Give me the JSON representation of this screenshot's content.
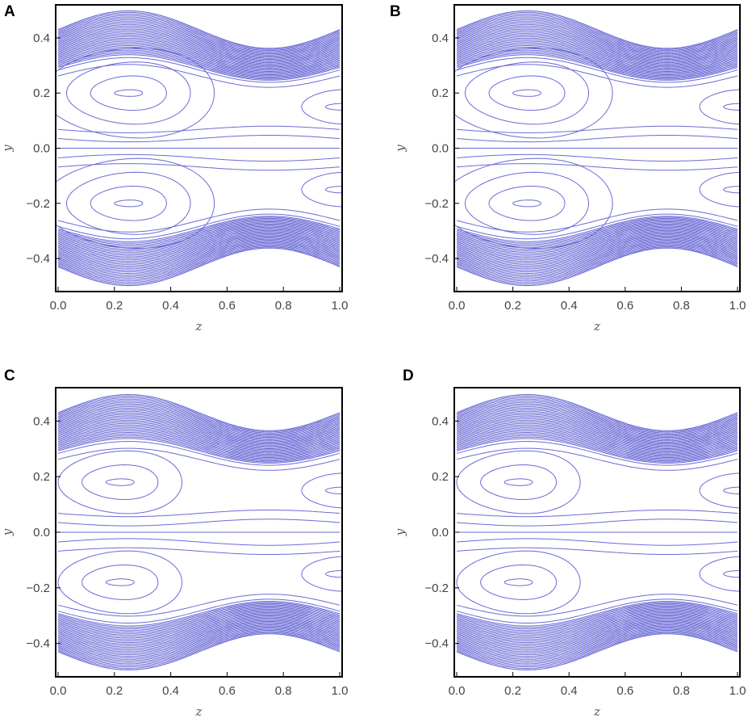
{
  "chart_data": [
    {
      "type": "contour",
      "panel_label": "A",
      "xlabel": "z",
      "ylabel": "y",
      "xlim": [
        0.0,
        1.0
      ],
      "ylim": [
        -0.52,
        0.52
      ],
      "xticks": [
        "0.0",
        "0.2",
        "0.4",
        "0.6",
        "0.8",
        "1.0"
      ],
      "yticks": [
        "-0.4",
        "-0.2",
        "0.0",
        "0.2",
        "0.4"
      ],
      "wall_amplitude": 0.068,
      "channel_half_width": 0.43,
      "vortex_centers": [
        [
          0.25,
          0.2
        ],
        [
          0.25,
          -0.2
        ],
        [
          1.0,
          0.15
        ],
        [
          1.0,
          -0.15
        ]
      ],
      "vortex_loops": 3,
      "contour_color": "#6b6bd6"
    },
    {
      "type": "contour",
      "panel_label": "B",
      "xlabel": "z",
      "ylabel": "y",
      "xlim": [
        0.0,
        1.0
      ],
      "ylim": [
        -0.52,
        0.52
      ],
      "xticks": [
        "0.0",
        "0.2",
        "0.4",
        "0.6",
        "0.8",
        "1.0"
      ],
      "yticks": [
        "-0.4",
        "-0.2",
        "0.0",
        "0.2",
        "0.4"
      ],
      "wall_amplitude": 0.068,
      "channel_half_width": 0.43,
      "vortex_centers": [
        [
          0.25,
          0.2
        ],
        [
          0.25,
          -0.2
        ],
        [
          1.0,
          0.15
        ],
        [
          1.0,
          -0.15
        ]
      ],
      "vortex_loops": 3,
      "contour_color": "#6b6bd6"
    },
    {
      "type": "contour",
      "panel_label": "C",
      "xlabel": "z",
      "ylabel": "y",
      "xlim": [
        0.0,
        1.0
      ],
      "ylim": [
        -0.52,
        0.52
      ],
      "xticks": [
        "0.0",
        "0.2",
        "0.4",
        "0.6",
        "0.8",
        "1.0"
      ],
      "yticks": [
        "-0.4",
        "-0.2",
        "0.0",
        "0.2",
        "0.4"
      ],
      "wall_amplitude": 0.065,
      "channel_half_width": 0.43,
      "vortex_centers": [
        [
          0.22,
          0.18
        ],
        [
          0.22,
          -0.18
        ],
        [
          1.0,
          0.15
        ],
        [
          1.0,
          -0.15
        ]
      ],
      "vortex_loops": 2,
      "contour_color": "#6b6bd6"
    },
    {
      "type": "contour",
      "panel_label": "D",
      "xlabel": "z",
      "ylabel": "y",
      "xlim": [
        0.0,
        1.0
      ],
      "ylim": [
        -0.52,
        0.52
      ],
      "xticks": [
        "0.0",
        "0.2",
        "0.4",
        "0.6",
        "0.8",
        "1.0"
      ],
      "yticks": [
        "-0.4",
        "-0.2",
        "0.0",
        "0.2",
        "0.4"
      ],
      "wall_amplitude": 0.065,
      "channel_half_width": 0.43,
      "vortex_centers": [
        [
          0.22,
          0.18
        ],
        [
          0.22,
          -0.18
        ],
        [
          1.0,
          0.15
        ],
        [
          1.0,
          -0.15
        ]
      ],
      "vortex_loops": 2,
      "contour_color": "#6b6bd6"
    }
  ]
}
